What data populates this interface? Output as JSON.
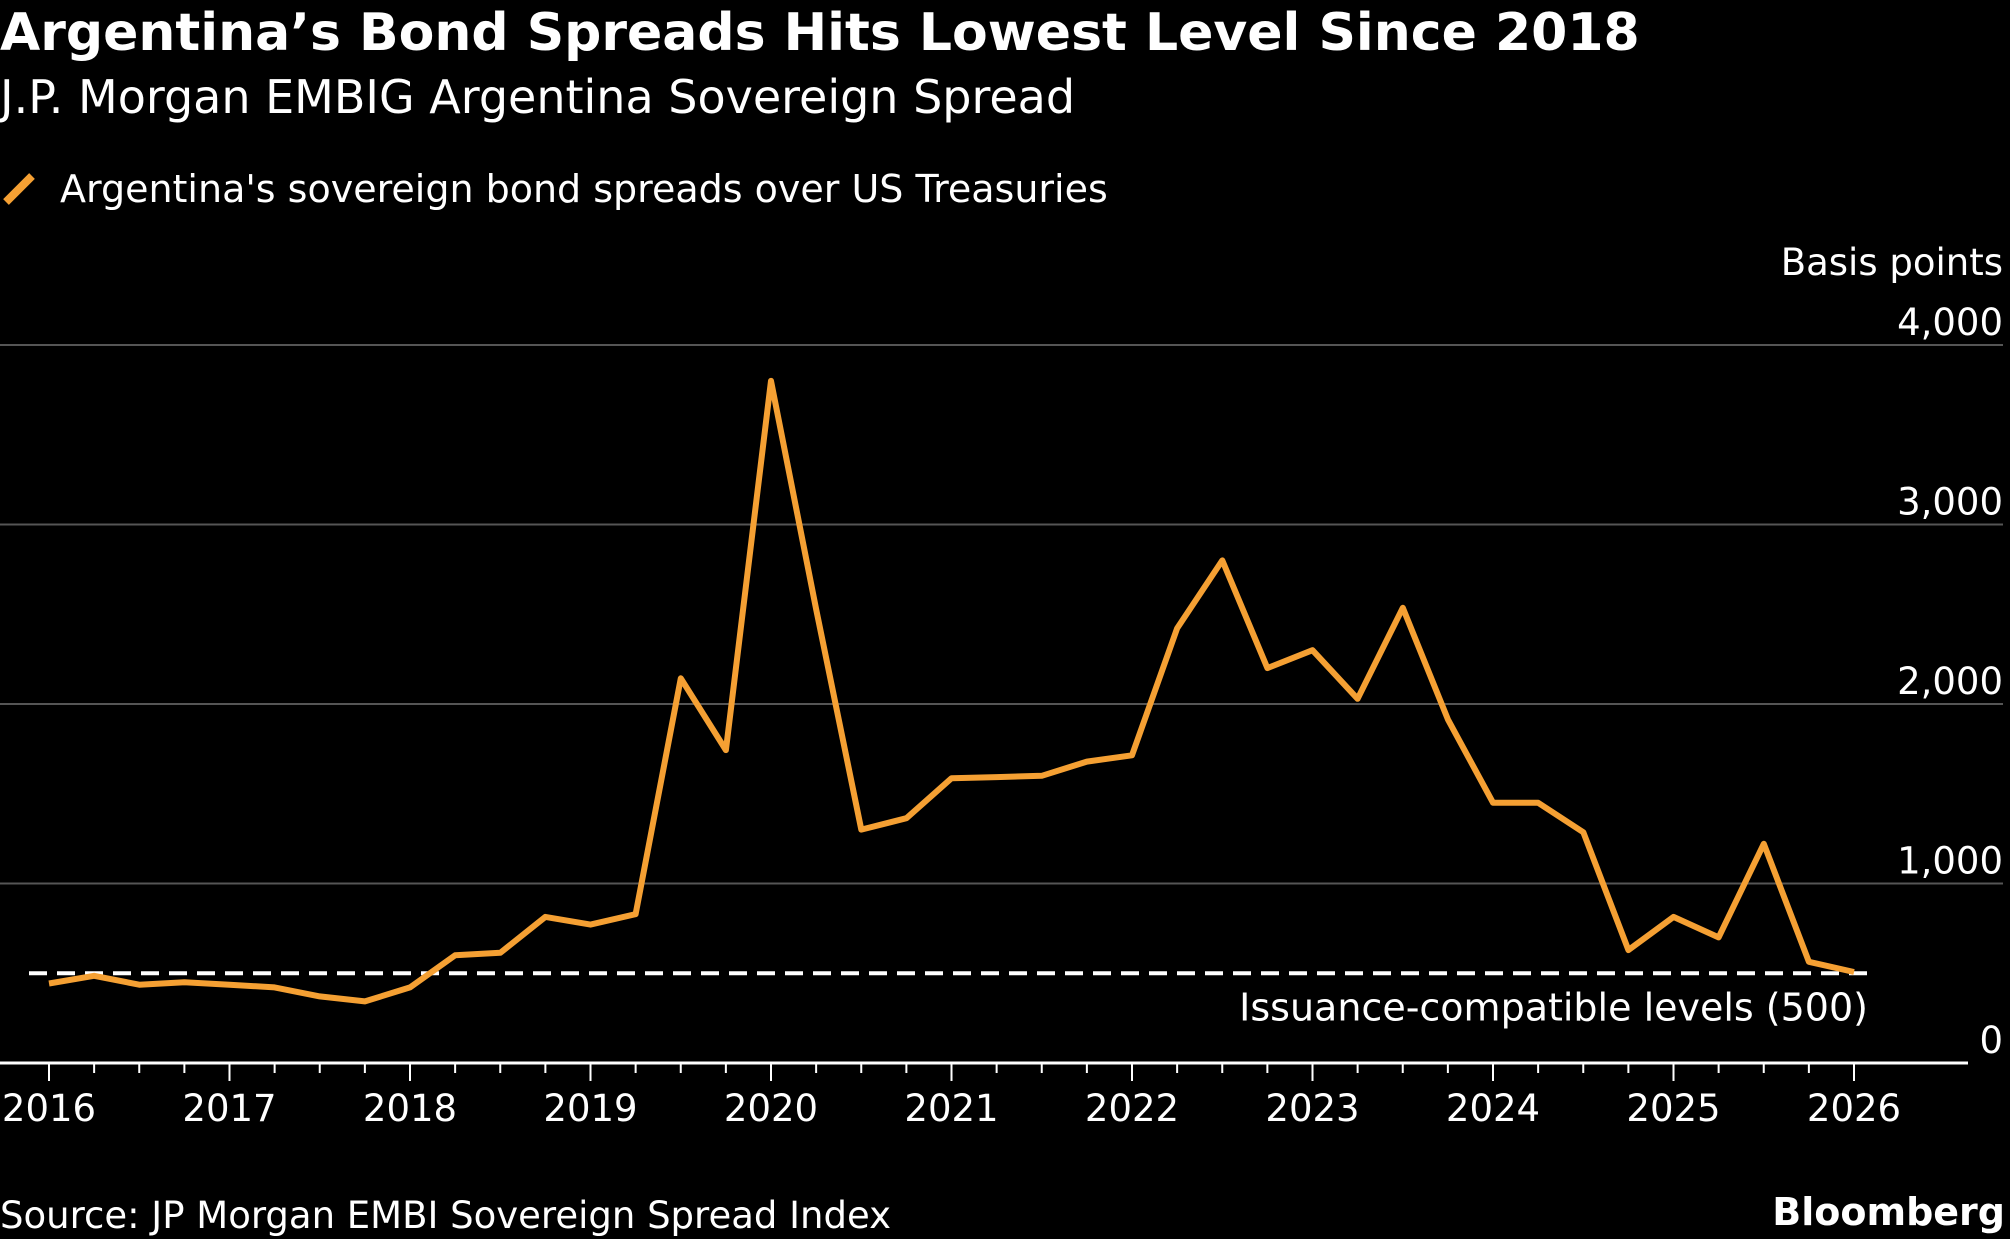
{
  "title": "Argentina’s Bond Spreads Hits Lowest Level Since 2018",
  "subtitle": "J.P. Morgan EMBIG Argentina Sovereign Spread",
  "source": "Source: JP Morgan EMBI Sovereign Spread Index",
  "brand": "Bloomberg",
  "colors": {
    "background": "#000000",
    "series": "#F5A033",
    "grid": "#555555",
    "reference": "#FFFFFF"
  },
  "chart_data": {
    "type": "line",
    "ylabel": "Basis points",
    "ylim": [
      0,
      4000
    ],
    "yticks": [
      0,
      1000,
      2000,
      3000,
      4000
    ],
    "ytick_labels": [
      "0",
      "1,000",
      "2,000",
      "3,000",
      "4,000"
    ],
    "xlim": [
      2016,
      2027
    ],
    "xtick_labels": [
      "2016",
      "2017",
      "2018",
      "2019",
      "2020",
      "2021",
      "2022",
      "2023",
      "2024",
      "2025",
      "2026"
    ],
    "grid": true,
    "legend_position": "top-left",
    "series": [
      {
        "name": "Argentina's sovereign bond spreads over US Treasuries",
        "x": [
          "2016-01",
          "2016-04",
          "2016-07",
          "2016-10",
          "2017-01",
          "2017-04",
          "2017-07",
          "2017-10",
          "2018-01",
          "2018-04",
          "2018-07",
          "2018-10",
          "2019-01",
          "2019-04",
          "2019-07",
          "2019-10",
          "2020-01",
          "2020-04",
          "2020-07",
          "2020-10",
          "2021-01",
          "2021-04",
          "2021-07",
          "2021-10",
          "2022-01",
          "2022-04",
          "2022-07",
          "2022-10",
          "2023-01",
          "2023-04",
          "2023-07",
          "2023-10",
          "2024-01",
          "2024-04",
          "2024-07",
          "2024-10",
          "2025-01",
          "2025-04",
          "2025-07",
          "2025-10",
          "2026-01"
        ],
        "values": [
          443,
          486,
          436,
          450,
          436,
          421,
          371,
          343,
          421,
          600,
          614,
          814,
          771,
          829,
          2143,
          1743,
          3800,
          2529,
          1300,
          1364,
          1586,
          1593,
          1600,
          1679,
          1714,
          2421,
          2800,
          2200,
          2300,
          2029,
          2536,
          1914,
          1450,
          1450,
          1286,
          629,
          814,
          700,
          1221,
          564,
          507
        ]
      }
    ],
    "reference_line": {
      "value": 500,
      "label": "Issuance-compatible levels (500)"
    }
  }
}
